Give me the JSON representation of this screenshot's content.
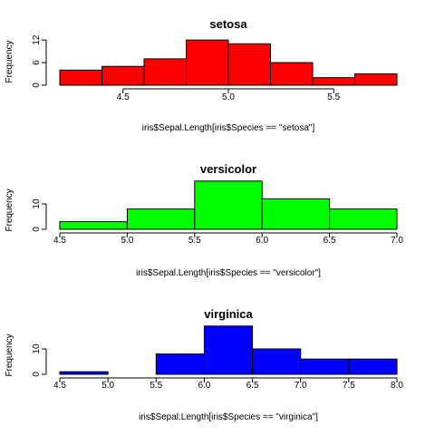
{
  "chart_data": [
    {
      "type": "bar",
      "title": "setosa",
      "xlabel": "iris$Sepal.Length[iris$Species == \"setosa\"]",
      "ylabel": "Frequency",
      "color": "#ff0000",
      "bin_edges": [
        4.2,
        4.4,
        4.6,
        4.8,
        5.0,
        5.2,
        5.4,
        5.6,
        5.8
      ],
      "values": [
        4,
        5,
        7,
        12,
        11,
        6,
        2,
        3
      ],
      "xticks": [
        "4.5",
        "5.0",
        "5.5"
      ],
      "xtick_values": [
        4.5,
        5.0,
        5.5
      ],
      "yticks": [
        "0",
        "6",
        "12"
      ],
      "ytick_values": [
        0,
        6,
        12
      ],
      "xlim": [
        4.2,
        5.8
      ],
      "ylim": [
        0,
        13
      ]
    },
    {
      "type": "bar",
      "title": "versicolor",
      "xlabel": "iris$Sepal.Length[iris$Species == \"versicolor\"]",
      "ylabel": "Frequency",
      "color": "#00ff00",
      "bin_edges": [
        4.5,
        5.0,
        5.5,
        6.0,
        6.5,
        7.0
      ],
      "values": [
        3,
        8,
        19,
        12,
        8
      ],
      "xticks": [
        "4.5",
        "5.0",
        "5.5",
        "6.0",
        "6.5",
        "7.0"
      ],
      "xtick_values": [
        4.5,
        5.0,
        5.5,
        6.0,
        6.5,
        7.0
      ],
      "yticks": [
        "0",
        "10"
      ],
      "ytick_values": [
        0,
        10
      ],
      "xlim": [
        4.5,
        7.0
      ],
      "ylim": [
        0,
        20
      ]
    },
    {
      "type": "bar",
      "title": "virginica",
      "xlabel": "iris$Sepal.Length[iris$Species == \"virginica\"]",
      "ylabel": "Frequency",
      "color": "#0000ff",
      "bin_edges": [
        4.5,
        5.0,
        5.5,
        6.0,
        6.5,
        7.0,
        7.5,
        8.0
      ],
      "values": [
        1,
        0,
        8,
        19,
        10,
        6,
        6
      ],
      "xticks": [
        "4.5",
        "5.0",
        "5.5",
        "6.0",
        "6.5",
        "7.0",
        "7.5",
        "8.0"
      ],
      "xtick_values": [
        4.5,
        5.0,
        5.5,
        6.0,
        6.5,
        7.0,
        7.5,
        8.0
      ],
      "yticks": [
        "0",
        "10"
      ],
      "ytick_values": [
        0,
        10
      ],
      "xlim": [
        4.5,
        8.0
      ],
      "ylim": [
        0,
        20
      ]
    }
  ]
}
